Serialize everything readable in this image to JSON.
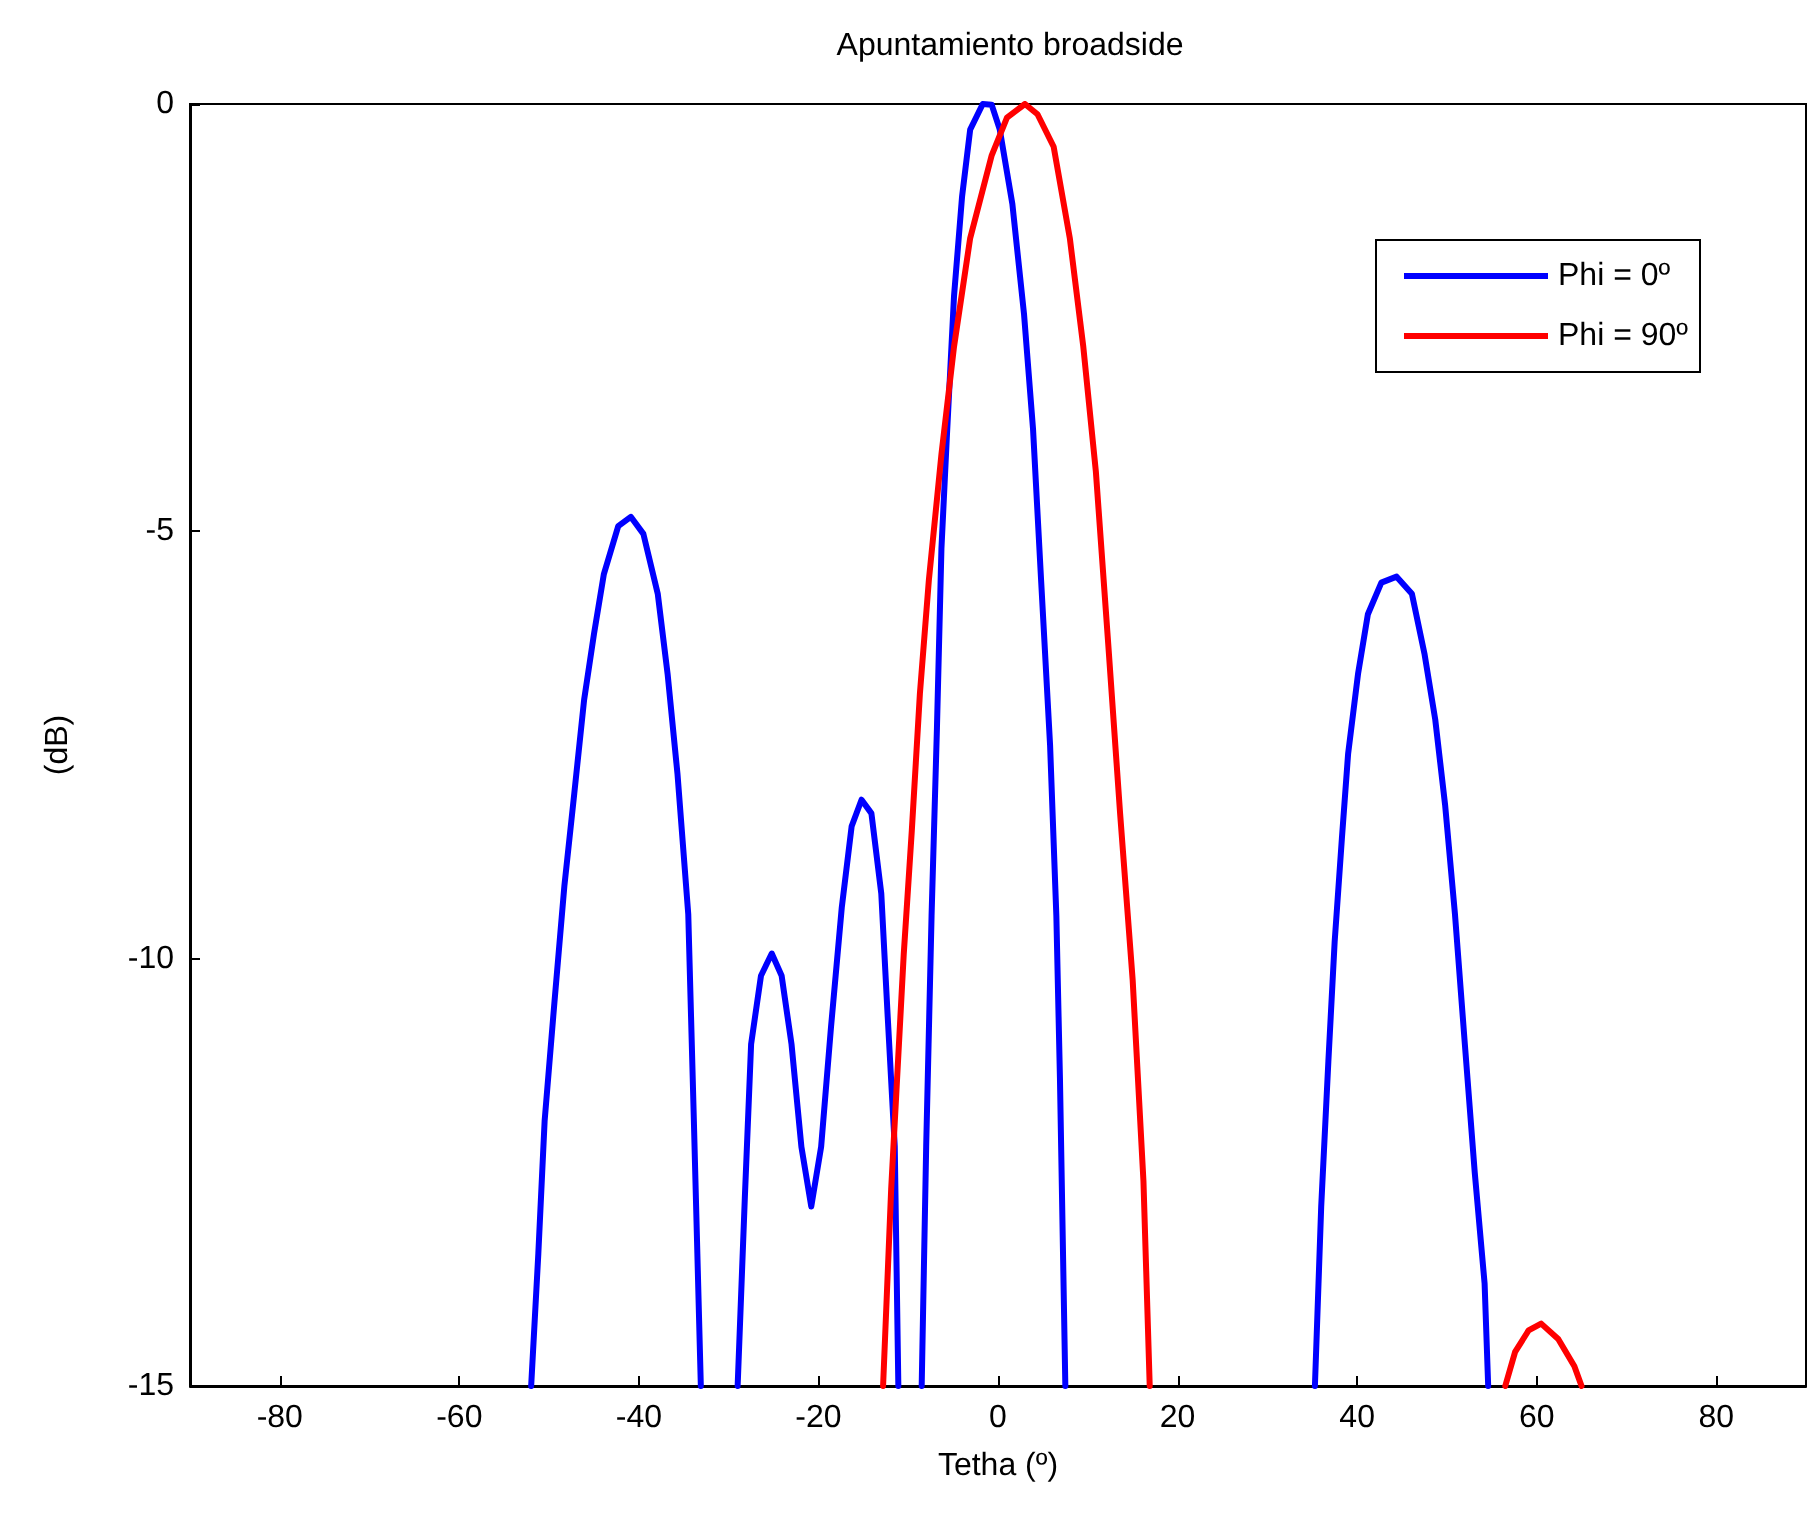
{
  "chart_data": {
    "type": "line",
    "title": "Apuntamiento broadside",
    "xlabel": "Tetha (º)",
    "ylabel": "(dB)",
    "xlim": [
      -90,
      90
    ],
    "xticks": [
      -80,
      -60,
      -40,
      -20,
      0,
      20,
      40,
      60,
      80
    ],
    "ylim": [
      -15,
      0
    ],
    "yticks": [
      -15,
      -10,
      -5,
      0
    ],
    "grid": false,
    "legend": "top right",
    "marker": "none",
    "line_style": "solid",
    "series": [
      {
        "name": "Phi = 0º",
        "color": "#0000ff",
        "x": [
          -52,
          -51.2,
          -50.5,
          -49.4,
          -48.3,
          -47.2,
          -46.1,
          -45,
          -43.9,
          -42.3,
          -40.9,
          -39.5,
          -37.9,
          -36.8,
          -35.7,
          -34.5,
          -33.9,
          -33.1,
          -31,
          -29,
          -28.2,
          -27.5,
          -26.4,
          -25.2,
          -24.1,
          -23,
          -21.9,
          -20.8,
          -19.7,
          -18.6,
          -17.4,
          -16.3,
          -15.2,
          -14.1,
          -13,
          -12.3,
          -11.5,
          -11.1,
          -10,
          -8.5,
          -8,
          -7.4,
          -6.8,
          -6.3,
          -5.7,
          -4.9,
          -4,
          -3.1,
          -1.7,
          -0.7,
          0.2,
          1.6,
          2.9,
          3.9,
          4.8,
          5.8,
          6.5,
          6.9,
          7.5,
          20,
          35.3,
          36,
          36.8,
          37.5,
          38.3,
          39,
          40.1,
          41.2,
          42.7,
          44.4,
          46.1,
          47.5,
          48.7,
          49.8,
          50.9,
          52,
          53.1,
          54.2,
          54.6
        ],
        "values": [
          -15,
          -13.45,
          -11.9,
          -10.5,
          -9.15,
          -8.07,
          -6.97,
          -6.2,
          -5.5,
          -4.94,
          -4.83,
          -5.03,
          -5.73,
          -6.67,
          -7.84,
          -9.48,
          -11.8,
          -15,
          null,
          -15,
          -12.8,
          -11,
          -10.2,
          -9.94,
          -10.2,
          -11,
          -12.2,
          -12.9,
          -12.2,
          -10.8,
          -9.4,
          -8.45,
          -8.14,
          -8.3,
          -9.24,
          -10.65,
          -12.2,
          -15,
          null,
          -15,
          -12.2,
          -9.5,
          -7.3,
          -5.2,
          -3.9,
          -2.25,
          -1.08,
          -0.3,
          0,
          -0.01,
          -0.3,
          -1.17,
          -2.46,
          -3.8,
          -5.57,
          -7.5,
          -9.5,
          -11.4,
          -15,
          null,
          -15,
          -12.9,
          -11.2,
          -9.8,
          -8.6,
          -7.6,
          -6.67,
          -5.97,
          -5.6,
          -5.53,
          -5.73,
          -6.43,
          -7.2,
          -8.2,
          -9.48,
          -11,
          -12.5,
          -13.8,
          -15
        ]
      },
      {
        "name": "Phi = 90º",
        "color": "#ff0000",
        "x": [
          -12.8,
          -11.9,
          -10.5,
          -9.6,
          -8.7,
          -7.7,
          -6.3,
          -4.9,
          -3.1,
          -0.7,
          1,
          3,
          4.4,
          6.2,
          8,
          9.5,
          10.9,
          12.3,
          13.6,
          15,
          16.2,
          16.9,
          40,
          56.5,
          57.6,
          59.1,
          60.5,
          62.4,
          64.2,
          65
        ],
        "values": [
          -15,
          -12.7,
          -9.95,
          -8.5,
          -6.9,
          -5.57,
          -4.1,
          -2.84,
          -1.57,
          -0.6,
          -0.16,
          0,
          -0.12,
          -0.5,
          -1.57,
          -2.84,
          -4.3,
          -6.35,
          -8.3,
          -10.25,
          -12.6,
          -15,
          null,
          -15,
          -14.6,
          -14.35,
          -14.27,
          -14.45,
          -14.77,
          -15
        ]
      }
    ]
  }
}
